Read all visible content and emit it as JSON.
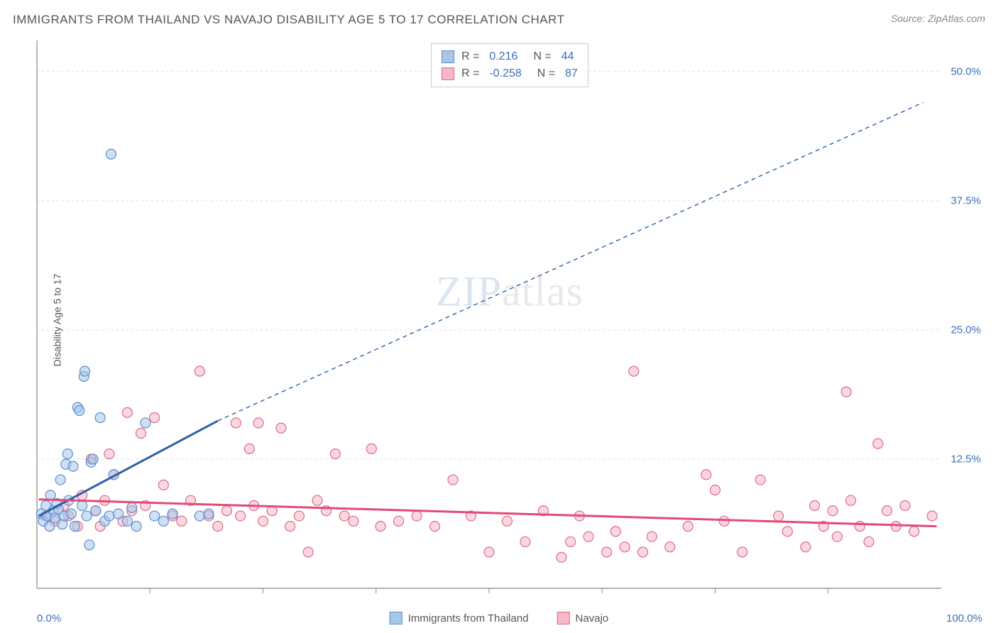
{
  "title": "IMMIGRANTS FROM THAILAND VS NAVAJO DISABILITY AGE 5 TO 17 CORRELATION CHART",
  "source": "Source: ZipAtlas.com",
  "ylabel": "Disability Age 5 to 17",
  "watermark_a": "ZIP",
  "watermark_b": "atlas",
  "chart": {
    "type": "scatter",
    "xlim": [
      0,
      100
    ],
    "ylim": [
      0,
      53
    ],
    "xticks": [
      0,
      100
    ],
    "xtick_labels": [
      "0.0%",
      "100.0%"
    ],
    "xtick_minor": [
      12.5,
      25,
      37.5,
      50,
      62.5,
      75,
      87.5
    ],
    "yticks": [
      12.5,
      25.0,
      37.5,
      50.0
    ],
    "ytick_labels": [
      "12.5%",
      "25.0%",
      "37.5%",
      "50.0%"
    ],
    "grid_color": "#dddddd",
    "axis_color": "#888888",
    "background": "#ffffff",
    "marker_radius": 7,
    "marker_stroke_width": 1.2,
    "series": [
      {
        "name": "Immigrants from Thailand",
        "fill": "#a8c6e8",
        "fill_opacity": 0.55,
        "stroke": "#5b8fd0",
        "R": "0.216",
        "N": "44",
        "trend": {
          "x1": 0.2,
          "y1": 7.0,
          "x2": 20,
          "y2": 16.2,
          "color": "#2f5fa8",
          "width": 3
        },
        "trend_dash": {
          "x1": 20,
          "y1": 16.2,
          "x2": 98,
          "y2": 47.0,
          "color": "#2f5fa8",
          "width": 1.4,
          "dash": "6,5"
        },
        "points": [
          [
            0.5,
            7.2
          ],
          [
            0.7,
            6.5
          ],
          [
            1.0,
            8.0
          ],
          [
            1.2,
            7.0
          ],
          [
            1.4,
            6.0
          ],
          [
            1.5,
            9.0
          ],
          [
            1.8,
            7.5
          ],
          [
            2.0,
            6.8
          ],
          [
            2.2,
            8.2
          ],
          [
            2.4,
            7.6
          ],
          [
            2.6,
            10.5
          ],
          [
            2.8,
            6.2
          ],
          [
            3.0,
            7.0
          ],
          [
            3.2,
            12.0
          ],
          [
            3.4,
            13.0
          ],
          [
            3.5,
            8.5
          ],
          [
            3.8,
            7.2
          ],
          [
            4.0,
            11.8
          ],
          [
            4.2,
            6.0
          ],
          [
            4.5,
            17.5
          ],
          [
            4.7,
            17.2
          ],
          [
            5.0,
            8.0
          ],
          [
            5.2,
            20.5
          ],
          [
            5.3,
            21.0
          ],
          [
            5.5,
            7.0
          ],
          [
            5.8,
            4.2
          ],
          [
            6.0,
            12.2
          ],
          [
            6.2,
            12.5
          ],
          [
            6.5,
            7.5
          ],
          [
            7.0,
            16.5
          ],
          [
            7.5,
            6.5
          ],
          [
            8.0,
            7.0
          ],
          [
            8.2,
            42.0
          ],
          [
            8.5,
            11.0
          ],
          [
            9.0,
            7.2
          ],
          [
            10.0,
            6.5
          ],
          [
            10.5,
            7.8
          ],
          [
            11.0,
            6.0
          ],
          [
            12.0,
            16.0
          ],
          [
            13.0,
            7.0
          ],
          [
            14.0,
            6.5
          ],
          [
            15.0,
            7.2
          ],
          [
            18.0,
            7.0
          ],
          [
            19.0,
            7.2
          ]
        ]
      },
      {
        "name": "Navajo",
        "fill": "#f5b8c6",
        "fill_opacity": 0.55,
        "stroke": "#e06a8a",
        "R": "-0.258",
        "N": "87",
        "trend": {
          "x1": 0.2,
          "y1": 8.6,
          "x2": 99.5,
          "y2": 6.0,
          "color": "#e24a78",
          "width": 3
        },
        "points": [
          [
            1.0,
            7.0
          ],
          [
            2.0,
            6.5
          ],
          [
            3.0,
            8.0
          ],
          [
            3.5,
            7.0
          ],
          [
            4.5,
            6.0
          ],
          [
            5.0,
            9.0
          ],
          [
            6.0,
            12.5
          ],
          [
            6.5,
            7.5
          ],
          [
            7.0,
            6.0
          ],
          [
            7.5,
            8.5
          ],
          [
            8.0,
            13.0
          ],
          [
            8.5,
            11.0
          ],
          [
            9.5,
            6.5
          ],
          [
            10.0,
            17.0
          ],
          [
            10.5,
            7.5
          ],
          [
            11.5,
            15.0
          ],
          [
            12.0,
            8.0
          ],
          [
            13.0,
            16.5
          ],
          [
            14.0,
            10.0
          ],
          [
            15.0,
            7.0
          ],
          [
            16.0,
            6.5
          ],
          [
            17.0,
            8.5
          ],
          [
            18.0,
            21.0
          ],
          [
            19.0,
            7.0
          ],
          [
            20.0,
            6.0
          ],
          [
            21.0,
            7.5
          ],
          [
            22.0,
            16.0
          ],
          [
            22.5,
            7.0
          ],
          [
            23.5,
            13.5
          ],
          [
            24.0,
            8.0
          ],
          [
            24.5,
            16.0
          ],
          [
            25.0,
            6.5
          ],
          [
            26.0,
            7.5
          ],
          [
            27.0,
            15.5
          ],
          [
            28.0,
            6.0
          ],
          [
            29.0,
            7.0
          ],
          [
            30.0,
            3.5
          ],
          [
            31.0,
            8.5
          ],
          [
            32.0,
            7.5
          ],
          [
            33.0,
            13.0
          ],
          [
            34.0,
            7.0
          ],
          [
            35.0,
            6.5
          ],
          [
            37.0,
            13.5
          ],
          [
            38.0,
            6.0
          ],
          [
            40.0,
            6.5
          ],
          [
            42.0,
            7.0
          ],
          [
            44.0,
            6.0
          ],
          [
            46.0,
            10.5
          ],
          [
            48.0,
            7.0
          ],
          [
            50.0,
            3.5
          ],
          [
            52.0,
            6.5
          ],
          [
            54.0,
            4.5
          ],
          [
            56.0,
            7.5
          ],
          [
            58.0,
            3.0
          ],
          [
            59.0,
            4.5
          ],
          [
            60.0,
            7.0
          ],
          [
            61.0,
            5.0
          ],
          [
            63.0,
            3.5
          ],
          [
            64.0,
            5.5
          ],
          [
            65.0,
            4.0
          ],
          [
            66.0,
            21.0
          ],
          [
            67.0,
            3.5
          ],
          [
            68.0,
            5.0
          ],
          [
            70.0,
            4.0
          ],
          [
            72.0,
            6.0
          ],
          [
            74.0,
            11.0
          ],
          [
            75.0,
            9.5
          ],
          [
            76.0,
            6.5
          ],
          [
            78.0,
            3.5
          ],
          [
            80.0,
            10.5
          ],
          [
            82.0,
            7.0
          ],
          [
            83.0,
            5.5
          ],
          [
            85.0,
            4.0
          ],
          [
            86.0,
            8.0
          ],
          [
            87.0,
            6.0
          ],
          [
            88.0,
            7.5
          ],
          [
            88.5,
            5.0
          ],
          [
            89.5,
            19.0
          ],
          [
            90.0,
            8.5
          ],
          [
            91.0,
            6.0
          ],
          [
            92.0,
            4.5
          ],
          [
            93.0,
            14.0
          ],
          [
            94.0,
            7.5
          ],
          [
            95.0,
            6.0
          ],
          [
            96.0,
            8.0
          ],
          [
            97.0,
            5.5
          ],
          [
            99.0,
            7.0
          ]
        ]
      }
    ]
  },
  "legend_bottom": [
    {
      "label": "Immigrants from Thailand",
      "fill": "#a8c6e8",
      "stroke": "#5b8fd0"
    },
    {
      "label": "Navajo",
      "fill": "#f5b8c6",
      "stroke": "#e06a8a"
    }
  ]
}
